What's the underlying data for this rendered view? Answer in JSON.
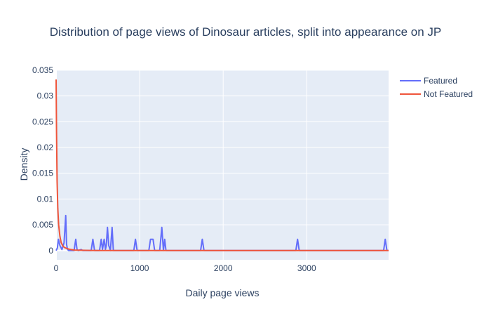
{
  "chart_data": {
    "type": "line",
    "title": "Distribution of page views of Dinosaur articles, split into appearance on JP",
    "xlabel": "Daily page views",
    "ylabel": "Density",
    "xlim": [
      0,
      3980
    ],
    "ylim": [
      -0.0018,
      0.035
    ],
    "x_ticks": [
      0,
      1000,
      2000,
      3000
    ],
    "x_tick_labels": [
      "0",
      "1000",
      "2000",
      "3000"
    ],
    "y_ticks": [
      0,
      0.005,
      0.01,
      0.015,
      0.02,
      0.025,
      0.03,
      0.035
    ],
    "y_tick_labels": [
      "0",
      "0.005",
      "0.01",
      "0.015",
      "0.02",
      "0.025",
      "0.03",
      "0.035"
    ],
    "grid": true,
    "legend_position": "top-right",
    "series": [
      {
        "name": "Featured",
        "color": "#636efa",
        "x": [
          0,
          15,
          28,
          45,
          70,
          95,
          115,
          125,
          137,
          150,
          180,
          215,
          235,
          250,
          265,
          300,
          320,
          350,
          420,
          440,
          460,
          520,
          540,
          555,
          575,
          590,
          600,
          615,
          630,
          650,
          670,
          685,
          700,
          930,
          950,
          970,
          1110,
          1130,
          1160,
          1180,
          1240,
          1265,
          1285,
          1300,
          1315,
          1330,
          1730,
          1750,
          1770,
          2870,
          2890,
          2910,
          3920,
          3940,
          3960,
          3980
        ],
        "y": [
          0,
          0.0005,
          0.0022,
          0.001,
          0.0002,
          0.0015,
          0.0068,
          0.0012,
          0.0002,
          0,
          0,
          0,
          0.0022,
          0.0002,
          0,
          0.0002,
          0,
          0,
          0,
          0.0022,
          0,
          0,
          0.0022,
          0.0002,
          0.0022,
          0.0002,
          0.001,
          0.0045,
          0.001,
          0,
          0.0045,
          0,
          0,
          0,
          0.0022,
          0,
          0,
          0.0022,
          0.0022,
          0,
          0,
          0.0045,
          0,
          0.0022,
          0,
          0,
          0,
          0.0022,
          0,
          0,
          0.0022,
          0,
          0,
          0.0022,
          0,
          0
        ]
      },
      {
        "name": "Not Featured",
        "color": "#ef553b",
        "x": [
          0,
          5,
          12,
          20,
          30,
          45,
          60,
          80,
          100,
          130,
          170,
          220,
          300,
          500,
          1000,
          2000,
          3000,
          3980
        ],
        "y": [
          0.0332,
          0.023,
          0.0135,
          0.0082,
          0.005,
          0.0028,
          0.0016,
          0.0009,
          0.0006,
          0.0004,
          0.0002,
          0.0001,
          5e-05,
          0,
          0,
          0,
          0,
          0
        ]
      }
    ]
  }
}
